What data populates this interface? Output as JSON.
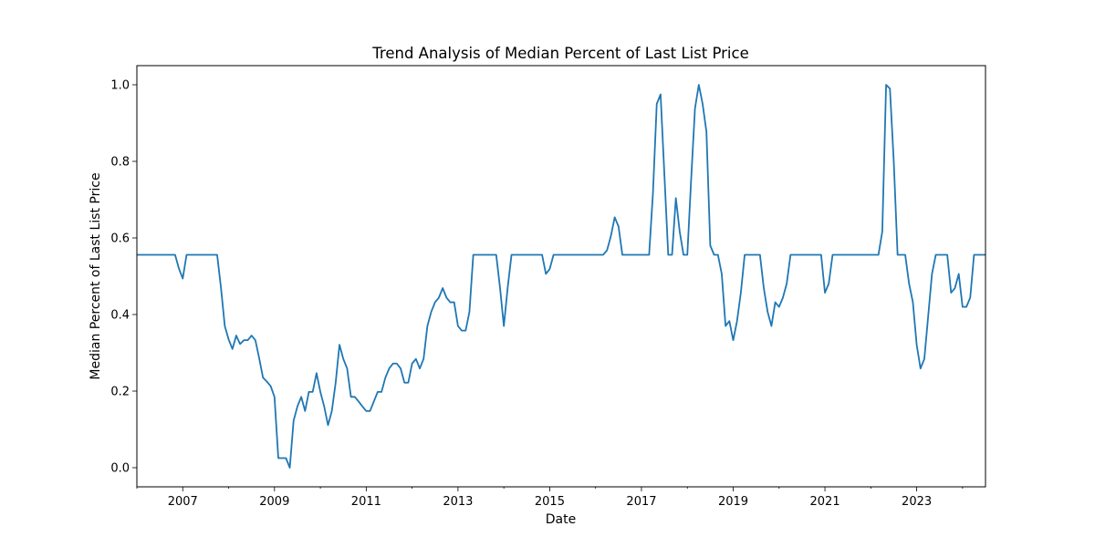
{
  "chart_data": {
    "type": "line",
    "title": "Trend Analysis of Median Percent of Last List Price",
    "xlabel": "Date",
    "ylabel": "Median Percent of Last List Price",
    "xlim": [
      "2006-01",
      "2024-07"
    ],
    "ylim": [
      -0.05,
      1.05
    ],
    "grid": false,
    "legend": "none",
    "line_color": "#1f77b4",
    "x_ticks": [
      {
        "date": "2007-01",
        "label": "2007"
      },
      {
        "date": "2009-01",
        "label": "2009"
      },
      {
        "date": "2011-01",
        "label": "2011"
      },
      {
        "date": "2013-01",
        "label": "2013"
      },
      {
        "date": "2015-01",
        "label": "2015"
      },
      {
        "date": "2017-01",
        "label": "2017"
      },
      {
        "date": "2019-01",
        "label": "2019"
      },
      {
        "date": "2021-01",
        "label": "2021"
      },
      {
        "date": "2023-01",
        "label": "2023"
      }
    ],
    "y_ticks": [
      {
        "value": 0.0,
        "label": "0.0"
      },
      {
        "value": 0.2,
        "label": "0.2"
      },
      {
        "value": 0.4,
        "label": "0.4"
      },
      {
        "value": 0.6,
        "label": "0.6"
      },
      {
        "value": 0.8,
        "label": "0.8"
      },
      {
        "value": 1.0,
        "label": "1.0"
      }
    ],
    "series": [
      {
        "x": [
          "2006-01",
          "2006-11",
          "2006-12",
          "2007-01",
          "2007-02",
          "2007-10",
          "2007-11",
          "2007-12",
          "2008-01",
          "2008-02",
          "2008-03",
          "2008-04",
          "2008-05",
          "2008-06",
          "2008-07",
          "2008-08",
          "2008-09",
          "2008-10",
          "2008-11",
          "2008-12",
          "2009-01",
          "2009-02",
          "2009-03",
          "2009-04",
          "2009-05",
          "2009-06",
          "2009-07",
          "2009-08",
          "2009-09",
          "2009-10",
          "2009-11",
          "2009-12",
          "2010-01",
          "2010-02",
          "2010-03",
          "2010-04",
          "2010-05",
          "2010-06",
          "2010-07",
          "2010-08",
          "2010-09",
          "2010-10",
          "2010-11",
          "2010-12",
          "2011-01",
          "2011-02",
          "2011-03",
          "2011-04",
          "2011-05",
          "2011-06",
          "2011-07",
          "2011-08",
          "2011-09",
          "2011-10",
          "2011-11",
          "2011-12",
          "2012-01",
          "2012-02",
          "2012-03",
          "2012-04",
          "2012-05",
          "2012-06",
          "2012-07",
          "2012-08",
          "2012-09",
          "2012-10",
          "2012-11",
          "2012-12",
          "2013-01",
          "2013-02",
          "2013-03",
          "2013-04",
          "2013-05",
          "2013-11",
          "2013-12",
          "2014-01",
          "2014-02",
          "2014-03",
          "2014-11",
          "2014-12",
          "2015-01",
          "2015-02",
          "2016-03",
          "2016-04",
          "2016-05",
          "2016-06",
          "2016-07",
          "2016-08",
          "2017-03",
          "2017-04",
          "2017-05",
          "2017-06",
          "2017-07",
          "2017-08",
          "2017-09",
          "2017-10",
          "2017-11",
          "2017-12",
          "2018-01",
          "2018-02",
          "2018-03",
          "2018-04",
          "2018-05",
          "2018-06",
          "2018-07",
          "2018-08",
          "2018-09",
          "2018-10",
          "2018-11",
          "2018-12",
          "2019-01",
          "2019-02",
          "2019-03",
          "2019-04",
          "2019-08",
          "2019-09",
          "2019-10",
          "2019-11",
          "2019-12",
          "2020-01",
          "2020-02",
          "2020-03",
          "2020-04",
          "2020-05",
          "2020-11",
          "2020-12",
          "2021-01",
          "2021-02",
          "2021-03",
          "2022-02",
          "2022-03",
          "2022-04",
          "2022-05",
          "2022-06",
          "2022-07",
          "2022-08",
          "2022-09",
          "2022-10",
          "2022-11",
          "2022-12",
          "2023-01",
          "2023-02",
          "2023-03",
          "2023-04",
          "2023-05",
          "2023-06",
          "2023-07",
          "2023-08",
          "2023-09",
          "2023-10",
          "2023-11",
          "2023-12",
          "2024-01",
          "2024-02",
          "2024-03",
          "2024-04",
          "2024-07"
        ],
        "y": [
          0.556,
          0.556,
          0.52,
          0.494,
          0.556,
          0.556,
          0.47,
          0.37,
          0.335,
          0.31,
          0.345,
          0.323,
          0.333,
          0.333,
          0.345,
          0.333,
          0.286,
          0.235,
          0.225,
          0.213,
          0.185,
          0.025,
          0.025,
          0.025,
          0.0,
          0.123,
          0.16,
          0.185,
          0.148,
          0.198,
          0.198,
          0.247,
          0.198,
          0.16,
          0.111,
          0.148,
          0.222,
          0.321,
          0.284,
          0.259,
          0.185,
          0.185,
          0.173,
          0.16,
          0.148,
          0.148,
          0.173,
          0.198,
          0.198,
          0.235,
          0.259,
          0.272,
          0.272,
          0.259,
          0.222,
          0.222,
          0.272,
          0.284,
          0.259,
          0.284,
          0.37,
          0.407,
          0.432,
          0.444,
          0.469,
          0.444,
          0.432,
          0.432,
          0.37,
          0.358,
          0.358,
          0.407,
          0.556,
          0.556,
          0.47,
          0.37,
          0.47,
          0.556,
          0.556,
          0.506,
          0.519,
          0.556,
          0.556,
          0.568,
          0.605,
          0.654,
          0.63,
          0.556,
          0.556,
          0.716,
          0.95,
          0.975,
          0.765,
          0.556,
          0.556,
          0.704,
          0.617,
          0.556,
          0.556,
          0.753,
          0.938,
          1.0,
          0.95,
          0.877,
          0.58,
          0.556,
          0.556,
          0.506,
          0.37,
          0.383,
          0.333,
          0.383,
          0.457,
          0.556,
          0.556,
          0.469,
          0.407,
          0.37,
          0.432,
          0.42,
          0.444,
          0.481,
          0.556,
          0.556,
          0.556,
          0.556,
          0.457,
          0.481,
          0.556,
          0.556,
          0.556,
          0.617,
          1.0,
          0.99,
          0.8,
          0.556,
          0.556,
          0.556,
          0.481,
          0.432,
          0.321,
          0.259,
          0.284,
          0.395,
          0.506,
          0.556,
          0.556,
          0.556,
          0.556,
          0.457,
          0.469,
          0.506,
          0.42,
          0.42,
          0.444,
          0.556,
          0.556
        ]
      }
    ]
  }
}
